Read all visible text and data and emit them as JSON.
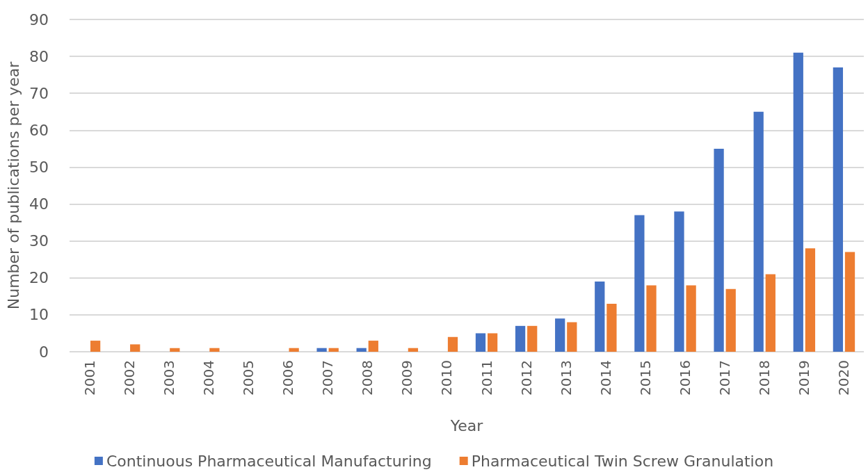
{
  "chart_data": {
    "type": "bar",
    "xlabel": "Year",
    "ylabel": "Number of publications per year",
    "categories": [
      "2001",
      "2002",
      "2003",
      "2004",
      "2005",
      "2006",
      "2007",
      "2008",
      "2009",
      "2010",
      "2011",
      "2012",
      "2013",
      "2014",
      "2015",
      "2016",
      "2017",
      "2018",
      "2019",
      "2020"
    ],
    "series": [
      {
        "name": "Continuous Pharmaceutical Manufacturing",
        "color": "#4472c4",
        "values": [
          0,
          0,
          0,
          0,
          0,
          0,
          1,
          1,
          0,
          0,
          5,
          7,
          9,
          19,
          37,
          38,
          55,
          65,
          81,
          77
        ]
      },
      {
        "name": "Pharmaceutical Twin Screw Granulation",
        "color": "#ed7d31",
        "values": [
          3,
          2,
          1,
          1,
          0,
          1,
          1,
          3,
          1,
          4,
          5,
          7,
          8,
          13,
          18,
          18,
          17,
          21,
          28,
          27
        ]
      }
    ],
    "ylim": [
      0,
      90
    ],
    "yticks": [
      0,
      10,
      20,
      30,
      40,
      50,
      60,
      70,
      80,
      90
    ],
    "grid": "y",
    "legend": "bottom"
  }
}
